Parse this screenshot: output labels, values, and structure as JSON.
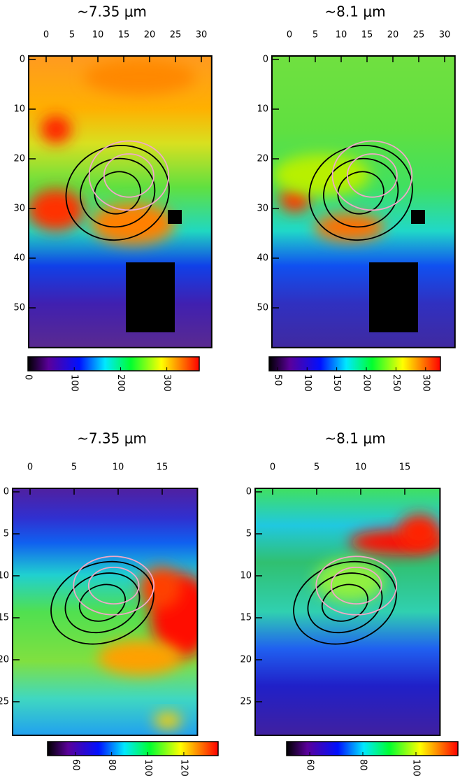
{
  "chart_data": [
    {
      "type": "heatmap",
      "title": "~7.35 μm",
      "xlim": [
        0,
        32
      ],
      "ylim": [
        0,
        58
      ],
      "xticks": [
        0,
        5,
        10,
        15,
        20,
        25,
        30
      ],
      "yticks": [
        0,
        10,
        20,
        30,
        40,
        50
      ],
      "clim": [
        0,
        370
      ],
      "cticks": [
        0,
        100,
        200,
        300
      ]
    },
    {
      "type": "heatmap",
      "title": "~8.1 μm",
      "xlim": [
        0,
        32
      ],
      "ylim": [
        0,
        58
      ],
      "xticks": [
        0,
        5,
        10,
        15,
        20,
        25,
        30
      ],
      "yticks": [
        0,
        10,
        20,
        30,
        40,
        50
      ],
      "clim": [
        36,
        325
      ],
      "cticks": [
        50,
        100,
        150,
        200,
        250,
        300
      ]
    },
    {
      "type": "heatmap",
      "title": "~7.35 μm",
      "xlim": [
        0,
        19
      ],
      "ylim": [
        0,
        29
      ],
      "xticks": [
        0,
        5,
        10,
        15
      ],
      "yticks": [
        0,
        5,
        10,
        15,
        20,
        25
      ],
      "clim": [
        44.5,
        139
      ],
      "cticks": [
        60,
        80,
        100,
        120
      ]
    },
    {
      "type": "heatmap",
      "title": "~8.1 μm",
      "xlim": [
        0,
        19
      ],
      "ylim": [
        0,
        29
      ],
      "xticks": [
        0,
        5,
        10,
        15
      ],
      "yticks": [
        0,
        5,
        10,
        15,
        20,
        25
      ],
      "clim": [
        51.3,
        115.8
      ],
      "cticks": [
        60,
        80,
        100
      ]
    }
  ]
}
